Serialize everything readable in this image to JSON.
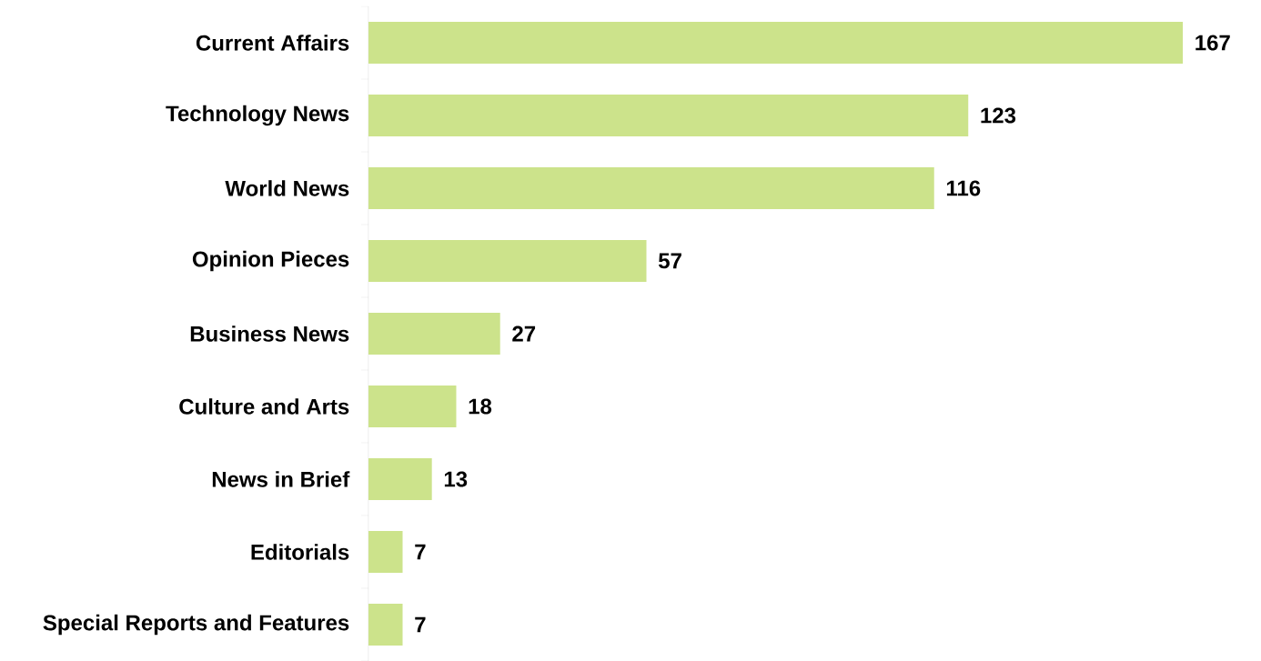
{
  "chart_data": {
    "type": "bar",
    "orientation": "horizontal",
    "categories": [
      "Current Affairs",
      "Technology News",
      "World News",
      "Opinion Pieces",
      "Business News",
      "Culture and Arts",
      "News in Brief",
      "Editorials",
      "Special Reports and Features"
    ],
    "values": [
      167,
      123,
      116,
      57,
      27,
      18,
      13,
      7,
      7
    ],
    "color": "#cce38b",
    "data_labels": true
  }
}
